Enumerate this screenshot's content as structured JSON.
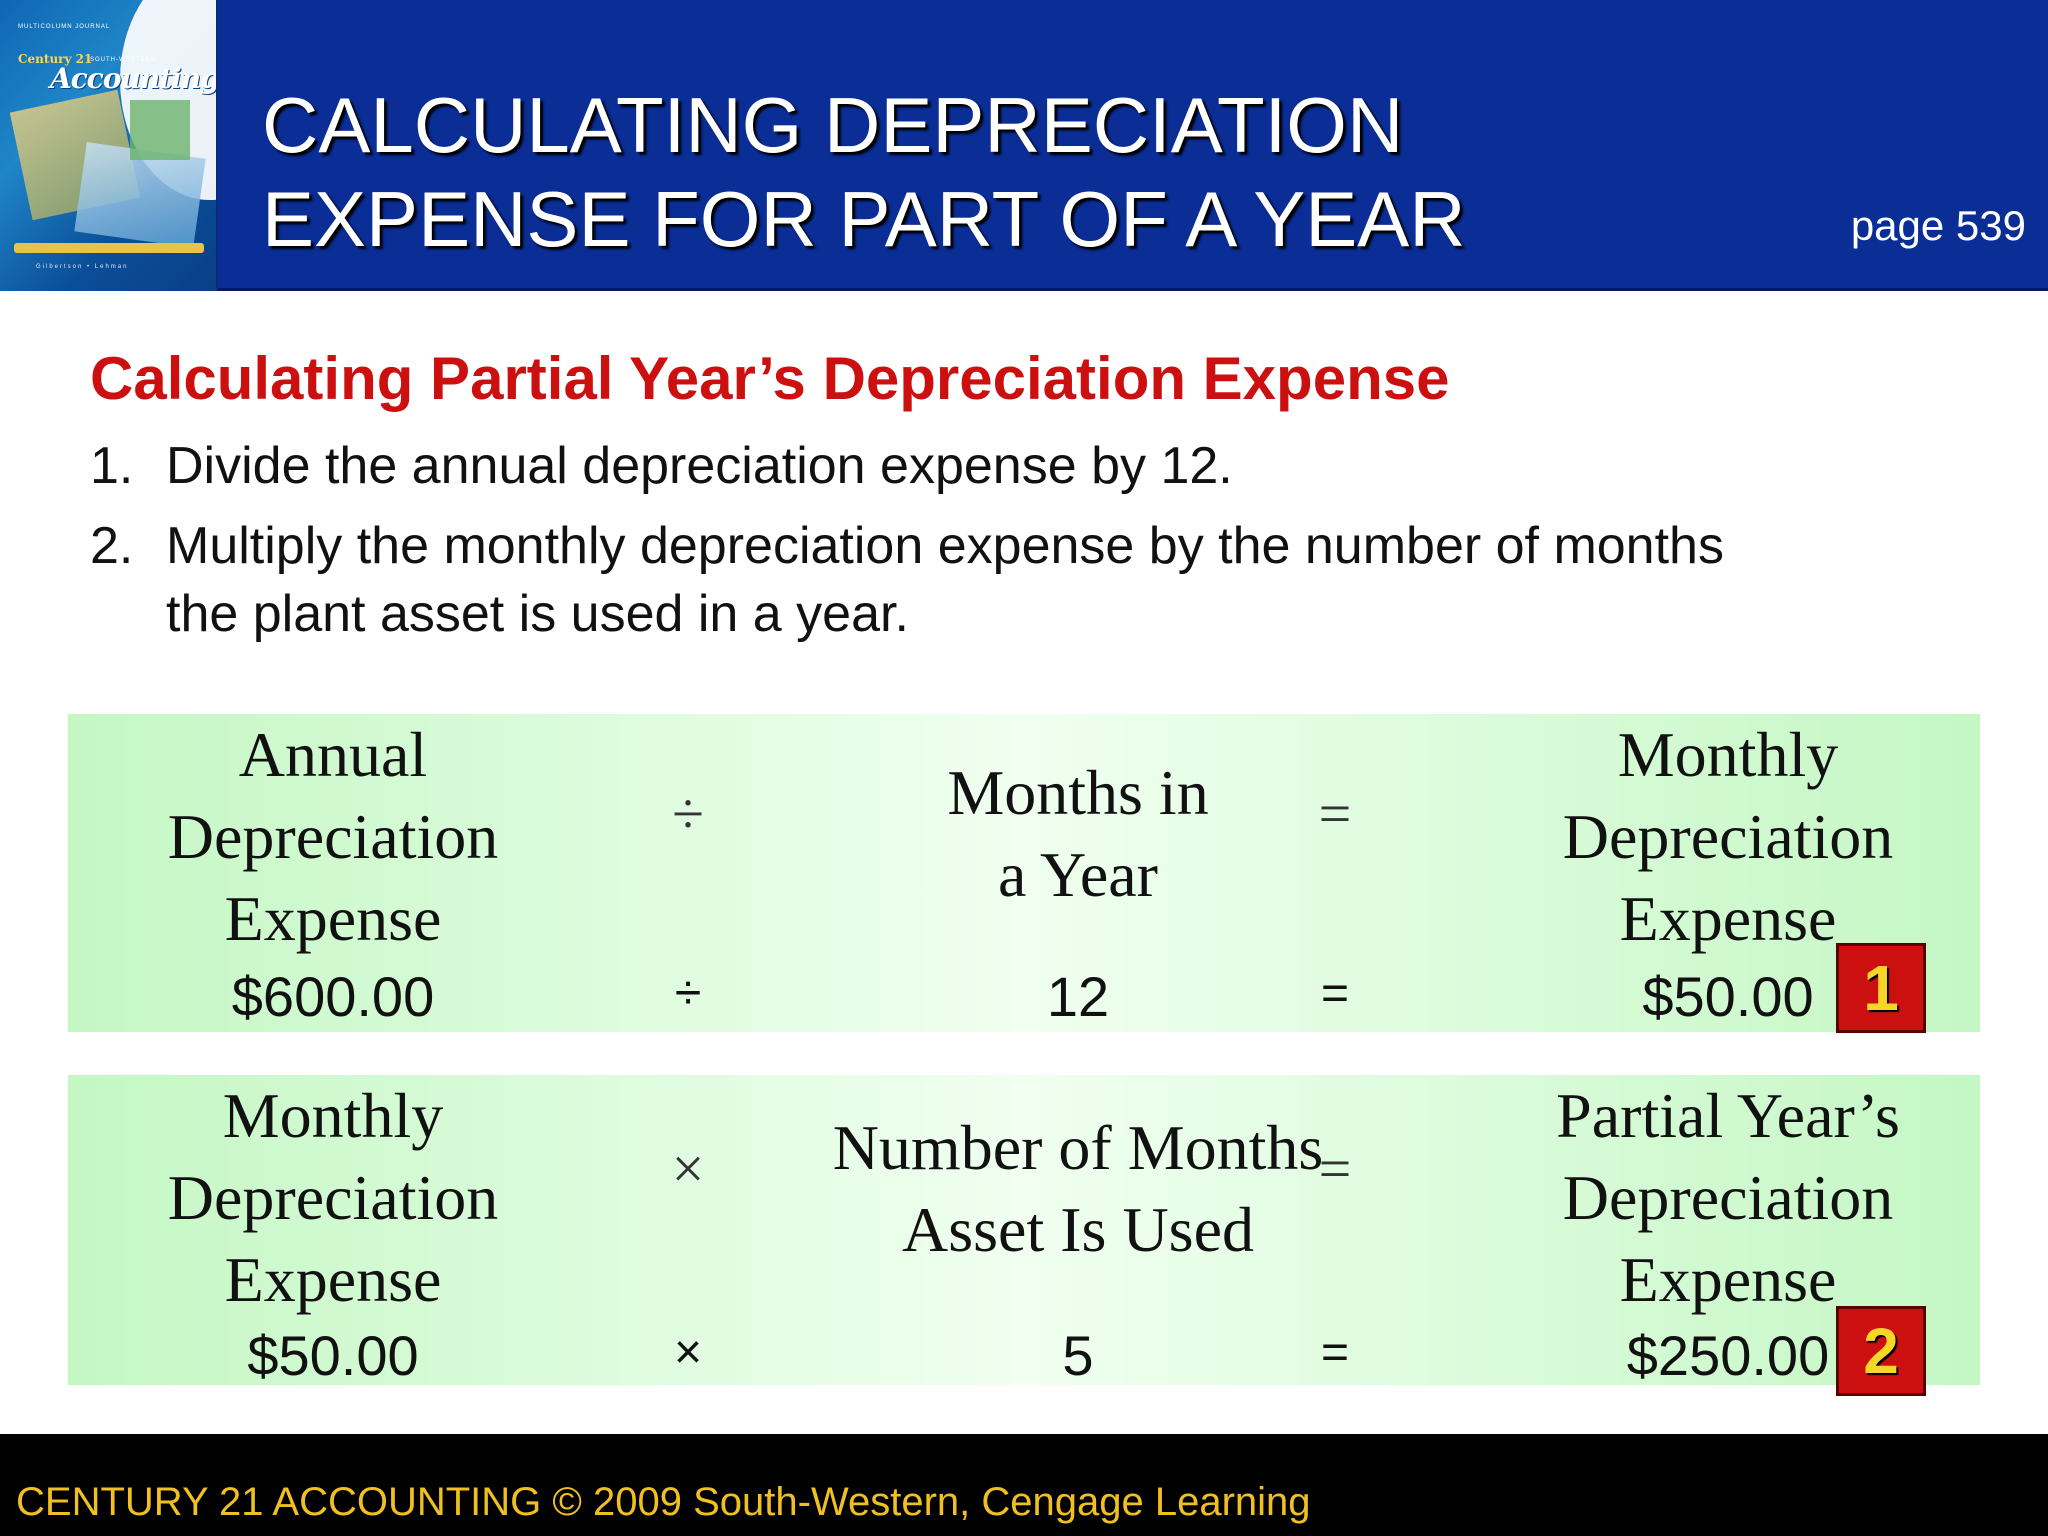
{
  "header": {
    "title_line1": "CALCULATING DEPRECIATION",
    "title_line2": "EXPENSE FOR PART OF A YEAR",
    "page_ref": "page 539",
    "book_cover": {
      "top_small": "MULTICOLUMN JOURNAL",
      "series": "Century 21",
      "publisher": "SOUTH-WESTERN",
      "title": "Accounting",
      "authors": "Gilbertson • Lehman"
    }
  },
  "content": {
    "subtitle": "Calculating Partial Year’s Depreciation Expense",
    "steps": [
      {
        "num": "1.",
        "text": "Divide the annual depreciation expense by 12."
      },
      {
        "num": "2.",
        "text": "Multiply the monthly depreciation expense by the number of months the plant asset is used in a year."
      }
    ]
  },
  "formula1": {
    "left_label_lines": [
      "Annual",
      "Depreciation",
      "Expense"
    ],
    "operator": "÷",
    "middle_label_lines": [
      "Months in",
      "a Year"
    ],
    "equals": "=",
    "right_label_lines": [
      "Monthly",
      "Depreciation",
      "Expense"
    ],
    "left_value": "$600.00",
    "operator_value": "÷",
    "middle_value": "12",
    "equals_value": "=",
    "right_value": "$50.00",
    "step_badge": "1"
  },
  "formula2": {
    "left_label_lines": [
      "Monthly",
      "Depreciation",
      "Expense"
    ],
    "operator": "×",
    "middle_label_lines": [
      "Number of Months",
      "Asset Is Used"
    ],
    "equals": "=",
    "right_label_lines": [
      "Partial Year’s",
      "Depreciation",
      "Expense"
    ],
    "left_value": "$50.00",
    "operator_value": "×",
    "middle_value": "5",
    "equals_value": "=",
    "right_value": "$250.00",
    "step_badge": "2"
  },
  "footer": {
    "text": "CENTURY 21 ACCOUNTING © 2009 South-Western, Cengage Learning"
  },
  "colors": {
    "header_bg": "#0a2d96",
    "subtitle": "#cc1010",
    "formula_bg": "#c4f7c4",
    "badge_bg": "#cc1010",
    "badge_text": "#f8d628",
    "footer_bg": "#000000",
    "footer_text": "#f0c020"
  }
}
